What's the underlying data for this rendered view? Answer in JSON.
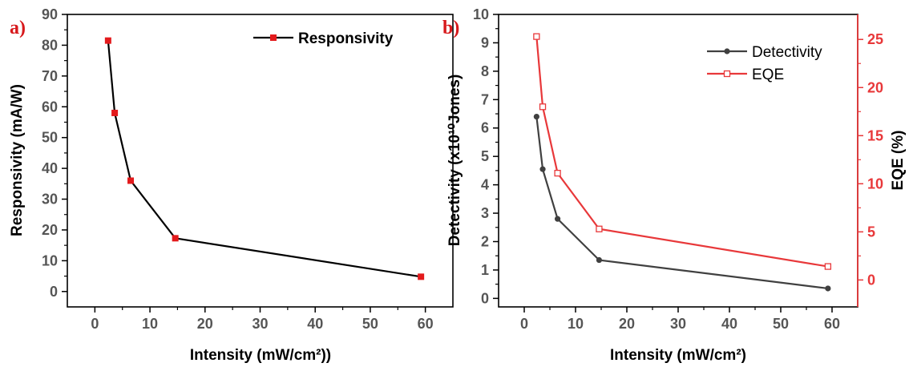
{
  "chart_data": [
    {
      "type": "line",
      "panel_label": "a)",
      "xlabel": "Intensity (mW/cm²))",
      "ylabel": "Responsivity (mA/W)",
      "xlim": [
        -5,
        65
      ],
      "ylim": [
        -5,
        90
      ],
      "xticks": [
        "0",
        "10",
        "20",
        "30",
        "40",
        "50",
        "60"
      ],
      "yticks": [
        "0",
        "10",
        "20",
        "30",
        "40",
        "50",
        "60",
        "70",
        "80",
        "90"
      ],
      "legend_position": "top-right",
      "series": [
        {
          "name": "Responsivity",
          "color": "#000000",
          "marker": "filled-square",
          "marker_color": "#e31a1c",
          "x": [
            2.4,
            3.6,
            6.5,
            14.6,
            59.2
          ],
          "y": [
            81.5,
            58,
            36,
            17.3,
            4.8
          ]
        }
      ]
    },
    {
      "type": "line",
      "panel_label": "b)",
      "xlabel": "Intensity (mW/cm²)",
      "ylabel": "Detectivity (x10¹⁰Jones)",
      "y2label": "EQE (%)",
      "xlim": [
        -5,
        65
      ],
      "ylim": [
        -0.3,
        10
      ],
      "y2lim": [
        -2.8,
        27.6
      ],
      "xticks": [
        "0",
        "10",
        "20",
        "30",
        "40",
        "50",
        "60"
      ],
      "yticks": [
        "0",
        "1",
        "2",
        "3",
        "4",
        "5",
        "6",
        "7",
        "8",
        "9",
        "10"
      ],
      "y2ticks": [
        "0",
        "5",
        "10",
        "15",
        "20",
        "25"
      ],
      "legend_position": "top-right",
      "series": [
        {
          "name": "Detectivity",
          "axis": "left",
          "color": "#404040",
          "marker": "filled-circle",
          "x": [
            2.4,
            3.6,
            6.5,
            14.6,
            59.2
          ],
          "y": [
            6.4,
            4.55,
            2.8,
            1.35,
            0.35
          ]
        },
        {
          "name": "EQE",
          "axis": "right",
          "color": "#e8383a",
          "marker": "open-square",
          "x": [
            2.4,
            3.6,
            6.5,
            14.6,
            59.2
          ],
          "y": [
            25.3,
            18,
            11.1,
            5.3,
            1.4
          ]
        }
      ]
    }
  ]
}
